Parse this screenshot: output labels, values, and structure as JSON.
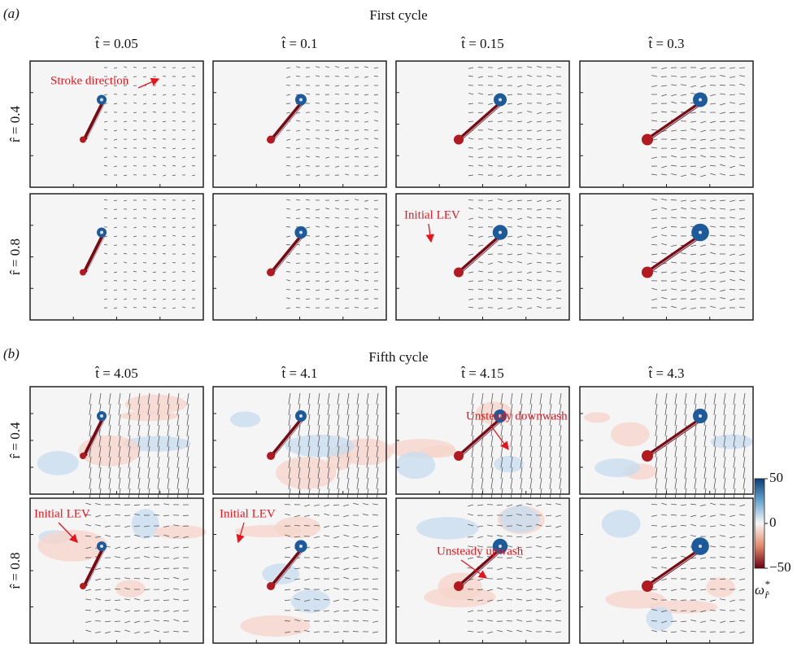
{
  "parts": [
    {
      "label": "(a)",
      "title": "First cycle",
      "columns": [
        "t̂ = 0.05",
        "t̂ = 0.1",
        "t̂ = 0.15",
        "t̂ = 0.3"
      ],
      "rows": [
        "r̂ = 0.4",
        "r̂ = 0.8"
      ],
      "annotations": [
        "Stroke direction",
        "Initial LEV"
      ]
    },
    {
      "label": "(b)",
      "title": "Fifth cycle",
      "columns": [
        "t̂ = 4.05",
        "t̂ = 4.1",
        "t̂ = 4.15",
        "t̂ = 4.3"
      ],
      "rows": [
        "r̂ = 0.4",
        "r̂ = 0.8"
      ],
      "annotations": [
        "Unsteady downwash",
        "Initial LEV",
        "Initial LEV",
        "Unsteady upwash"
      ]
    }
  ],
  "colorbar": {
    "lim": [
      -50,
      50
    ],
    "ticks": [
      50,
      0,
      {
        "value": -50,
        "label": "−50"
      }
    ],
    "symbol": "ω",
    "superscript": "*",
    "subscript": "r̂"
  }
}
